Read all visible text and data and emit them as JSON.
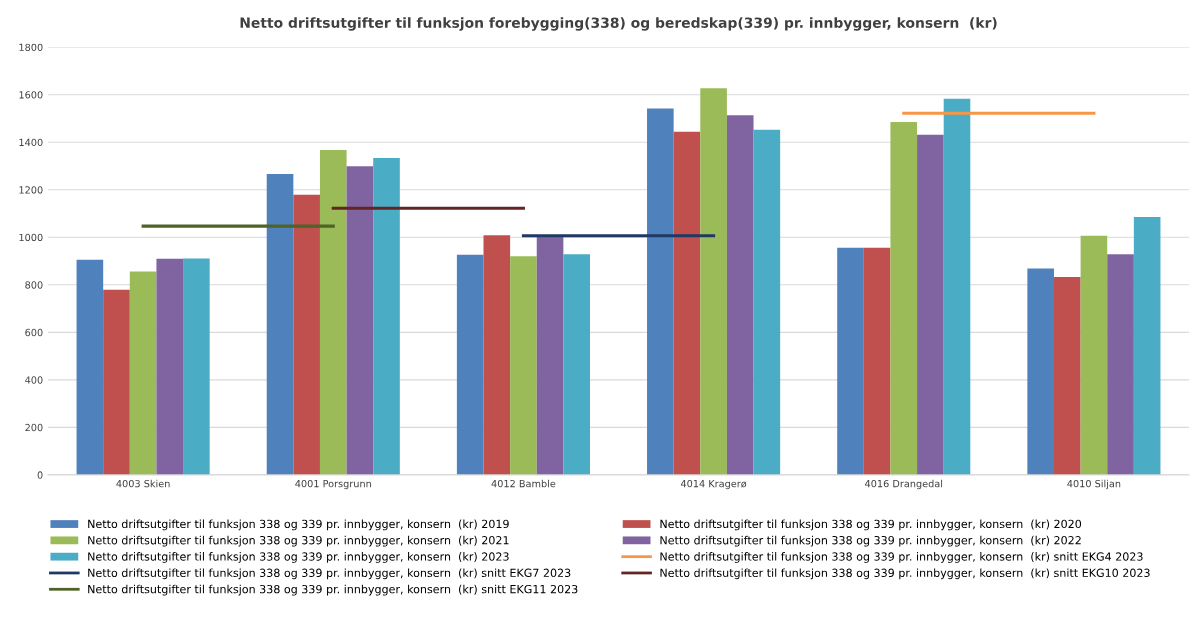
{
  "chart_data": {
    "type": "bar",
    "title": "Netto driftsutgifter til funksjon forebygging(338) og beredskap(339) pr. innbygger, konsern  (kr)",
    "categories": [
      "4003 Skien",
      "4001 Porsgrunn",
      "4012 Bamble",
      "4014 Kragerø",
      "4016 Drangedal",
      "4010 Siljan"
    ],
    "series": [
      {
        "name": "Netto driftsutgifter til funksjon 338 og 339 pr. innbygger, konsern  (kr) 2019",
        "color": "#4f81bd",
        "values": [
          905,
          1266,
          926,
          1542,
          956,
          869
        ]
      },
      {
        "name": "Netto driftsutgifter til funksjon 338 og 339 pr. innbygger, konsern  (kr) 2020",
        "color": "#c0504d",
        "values": [
          779,
          1179,
          1008,
          1444,
          956,
          833
        ]
      },
      {
        "name": "Netto driftsutgifter til funksjon 338 og 339 pr. innbygger, konsern  (kr) 2021",
        "color": "#9bbb59",
        "values": [
          856,
          1367,
          920,
          1627,
          1485,
          1006
        ]
      },
      {
        "name": "Netto driftsutgifter til funksjon 338 og 339 pr. innbygger, konsern  (kr) 2022",
        "color": "#8064a2",
        "values": [
          910,
          1299,
          1003,
          1513,
          1431,
          929
        ]
      },
      {
        "name": "Netto driftsutgifter til funksjon 338 og 339 pr. innbygger, konsern  (kr) 2023",
        "color": "#4bacc6",
        "values": [
          911,
          1334,
          929,
          1452,
          1583,
          1085
        ]
      },
      {
        "name": "Netto driftsutgifter til funksjon 338 og 339 pr. innbygger, konsern  (kr) snitt EKG4 2023",
        "color": "#f79646",
        "type": "line",
        "values": [
          null,
          null,
          null,
          null,
          1522,
          1522
        ]
      },
      {
        "name": "Netto driftsutgifter til funksjon 338 og 339 pr. innbygger, konsern  (kr) snitt EKG7 2023",
        "color": "#1f3864",
        "type": "line",
        "values": [
          null,
          null,
          1006,
          1006,
          null,
          null
        ]
      },
      {
        "name": "Netto driftsutgifter til funksjon 338 og 339 pr. innbygger, konsern  (kr) snitt EKG10 2023",
        "color": "#632523",
        "type": "line",
        "values": [
          null,
          1122,
          1122,
          null,
          null,
          null
        ]
      },
      {
        "name": "Netto driftsutgifter til funksjon 338 og 339 pr. innbygger, konsern  (kr) snitt EKG11 2023",
        "color": "#4f6228",
        "type": "line",
        "values": [
          1047,
          1047,
          null,
          null,
          null,
          null
        ]
      }
    ],
    "ylim": [
      0,
      1800
    ],
    "yticks": [
      0,
      200,
      400,
      600,
      800,
      1000,
      1200,
      1400,
      1600,
      1800
    ],
    "grid": "y",
    "legend": "bottom"
  }
}
